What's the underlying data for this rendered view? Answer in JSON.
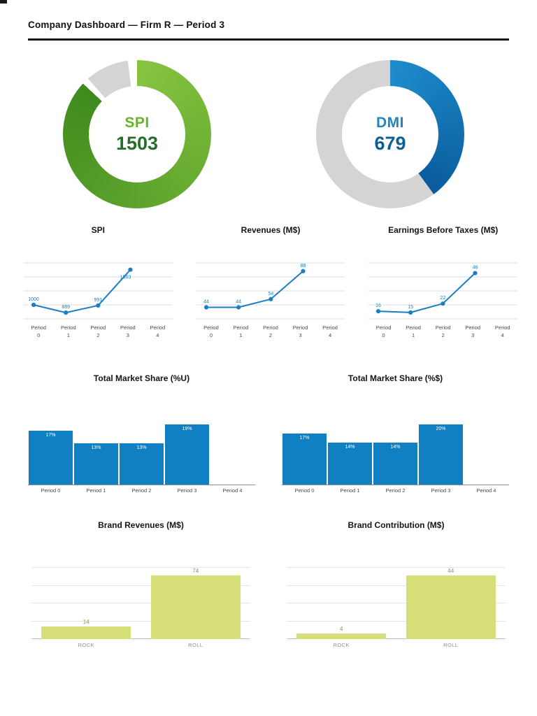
{
  "header": {
    "title": "Company Dashboard — Firm R — Period 3"
  },
  "chart_data": [
    {
      "id": "spi-gauge",
      "type": "donut",
      "label": "SPI",
      "value": 1503,
      "percent": 87,
      "start_color": "#86c440",
      "end_color": "#3e8a1d",
      "track": "#d4d4d4",
      "track_gap": true,
      "label_color": "#67b32d",
      "value_color": "#276d2a"
    },
    {
      "id": "dmi-gauge",
      "type": "donut",
      "label": "DMI",
      "value": 679,
      "percent": 40,
      "start_color": "#1e8ccb",
      "end_color": "#0a5c9d",
      "track": "#d4d4d4",
      "track_gap": false,
      "label_color": "#1d86c3",
      "value_color": "#0d5f92"
    },
    {
      "id": "spi-trend",
      "type": "line",
      "title": "SPI",
      "categories": [
        "Period 0",
        "Period 1",
        "Period 2",
        "Period 3",
        "Period 4"
      ],
      "values": [
        1000,
        889,
        991,
        1503,
        null
      ],
      "ylim": [
        800,
        1600
      ],
      "color": "#1b7fc2",
      "grid": true
    },
    {
      "id": "revenues-trend",
      "type": "line",
      "title": "Revenues (M$)",
      "categories": [
        "Period 0",
        "Period 1",
        "Period 2",
        "Period 3",
        "Period 4"
      ],
      "values": [
        44,
        44,
        54,
        88,
        null
      ],
      "ylim": [
        30,
        98
      ],
      "color": "#1b7fc2",
      "grid": true
    },
    {
      "id": "ebt-trend",
      "type": "line",
      "title": "Earnings Before Taxes (M$)",
      "categories": [
        "Period 0",
        "Period 1",
        "Period 2",
        "Period 3",
        "Period 4"
      ],
      "values": [
        16,
        15,
        22,
        46,
        null
      ],
      "ylim": [
        10,
        54
      ],
      "color": "#1b7fc2",
      "grid": true
    },
    {
      "id": "market-share-u",
      "type": "bar",
      "title": "Total Market Share (%U)",
      "categories": [
        "Period 0",
        "Period 1",
        "Period 2",
        "Period 3",
        "Period 4"
      ],
      "values": [
        17,
        13,
        13,
        19,
        null
      ],
      "bar_labels": [
        "17%",
        "13%",
        "13%",
        "19%",
        ""
      ],
      "ymax": 21.5,
      "bar_color": "#1080c2",
      "bar_label_color": "#ffffff"
    },
    {
      "id": "market-share-s",
      "type": "bar",
      "title": "Total Market Share (%$)",
      "categories": [
        "Period 0",
        "Period 1",
        "Period 2",
        "Period 3",
        "Period 4"
      ],
      "values": [
        17,
        14,
        14,
        20,
        null
      ],
      "bar_labels": [
        "17%",
        "14%",
        "14%",
        "20%",
        ""
      ],
      "ymax": 22.5,
      "bar_color": "#1080c2",
      "bar_label_color": "#ffffff"
    },
    {
      "id": "brand-revenues",
      "type": "brand-bar",
      "title": "Brand Revenues (M$)",
      "categories": [
        "ROCK",
        "ROLL"
      ],
      "values": [
        14,
        74
      ],
      "ymax": 80,
      "bar_color": "#d6de78",
      "value_label_color": "#8f9055",
      "grid": true
    },
    {
      "id": "brand-contribution",
      "type": "brand-bar",
      "title": "Brand Contribution (M$)",
      "categories": [
        "ROCK",
        "ROLL"
      ],
      "values": [
        4,
        44
      ],
      "ymax": 48,
      "bar_color": "#d6de78",
      "value_label_color": "#8f9055",
      "grid": true
    }
  ]
}
